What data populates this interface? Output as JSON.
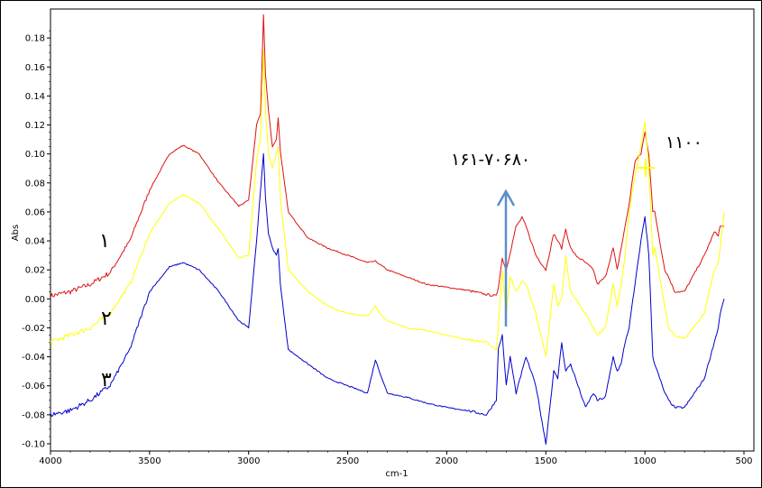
{
  "chart_data": {
    "type": "line",
    "title": "",
    "xlabel": "cm-1",
    "ylabel": "Abs",
    "xlim": [
      4000,
      450
    ],
    "ylim": [
      -0.105,
      0.2
    ],
    "x_reversed": true,
    "grid": false,
    "legend": "none",
    "x_ticks": [
      4000,
      3500,
      3000,
      2500,
      2000,
      1500,
      1000,
      500
    ],
    "y_ticks": [
      -0.1,
      -0.08,
      -0.06,
      -0.04,
      -0.02,
      0.0,
      0.02,
      0.04,
      0.06,
      0.08,
      0.1,
      0.12,
      0.14,
      0.16,
      0.18
    ],
    "series": [
      {
        "color": "#dd1111",
        "x": [
          4000,
          3900,
          3800,
          3700,
          3600,
          3500,
          3400,
          3330,
          3250,
          3150,
          3050,
          3000,
          2960,
          2940,
          2925,
          2915,
          2900,
          2880,
          2860,
          2851,
          2840,
          2800,
          2700,
          2600,
          2500,
          2400,
          2360,
          2340,
          2300,
          2200,
          2100,
          2000,
          1900,
          1800,
          1750,
          1740,
          1720,
          1700,
          1680,
          1650,
          1620,
          1600,
          1550,
          1500,
          1460,
          1440,
          1420,
          1400,
          1375,
          1350,
          1300,
          1260,
          1240,
          1200,
          1160,
          1140,
          1120,
          1100,
          1080,
          1050,
          1020,
          1000,
          980,
          960,
          950,
          900,
          880,
          850,
          800,
          700,
          650,
          630,
          620,
          600
        ],
        "y": [
          0.002,
          0.005,
          0.01,
          0.018,
          0.04,
          0.075,
          0.1,
          0.106,
          0.1,
          0.08,
          0.064,
          0.068,
          0.12,
          0.128,
          0.196,
          0.155,
          0.13,
          0.105,
          0.11,
          0.125,
          0.102,
          0.06,
          0.042,
          0.035,
          0.03,
          0.025,
          0.026,
          0.024,
          0.02,
          0.015,
          0.01,
          0.008,
          0.006,
          0.003,
          0.002,
          0.008,
          0.028,
          0.02,
          0.032,
          0.05,
          0.056,
          0.05,
          0.03,
          0.02,
          0.045,
          0.04,
          0.035,
          0.048,
          0.035,
          0.03,
          0.025,
          0.02,
          0.01,
          0.015,
          0.035,
          0.02,
          0.035,
          0.05,
          0.065,
          0.095,
          0.1,
          0.115,
          0.1,
          0.06,
          0.06,
          0.02,
          0.015,
          0.005,
          0.005,
          0.03,
          0.046,
          0.044,
          0.05,
          0.05
        ]
      },
      {
        "color": "#ffff00",
        "x": [
          4000,
          3900,
          3800,
          3700,
          3600,
          3500,
          3400,
          3330,
          3250,
          3150,
          3050,
          3000,
          2960,
          2940,
          2925,
          2915,
          2900,
          2880,
          2860,
          2851,
          2840,
          2800,
          2700,
          2600,
          2500,
          2400,
          2360,
          2340,
          2300,
          2200,
          2100,
          2000,
          1900,
          1800,
          1750,
          1740,
          1720,
          1700,
          1680,
          1650,
          1620,
          1600,
          1550,
          1500,
          1460,
          1440,
          1420,
          1400,
          1375,
          1350,
          1300,
          1260,
          1240,
          1200,
          1160,
          1140,
          1120,
          1100,
          1080,
          1050,
          1020,
          1000,
          980,
          960,
          950,
          900,
          880,
          850,
          800,
          700,
          650,
          630,
          620,
          600
        ],
        "y": [
          -0.03,
          -0.025,
          -0.02,
          -0.01,
          0.01,
          0.045,
          0.066,
          0.072,
          0.066,
          0.048,
          0.028,
          0.03,
          0.095,
          0.112,
          0.172,
          0.13,
          0.1,
          0.09,
          0.1,
          0.105,
          0.07,
          0.02,
          0.005,
          -0.005,
          -0.01,
          -0.012,
          -0.005,
          -0.01,
          -0.015,
          -0.02,
          -0.022,
          -0.025,
          -0.028,
          -0.03,
          -0.035,
          -0.02,
          0.02,
          -0.01,
          0.015,
          0.005,
          0.012,
          0.01,
          -0.01,
          -0.04,
          0.01,
          -0.005,
          0.0,
          0.03,
          0.005,
          0.0,
          -0.01,
          -0.02,
          -0.025,
          -0.02,
          0.01,
          -0.005,
          0.01,
          0.03,
          0.06,
          0.085,
          0.105,
          0.122,
          0.09,
          0.03,
          0.035,
          -0.005,
          -0.02,
          -0.025,
          -0.028,
          -0.01,
          0.02,
          0.025,
          0.035,
          0.06
        ]
      },
      {
        "color": "#0000cc",
        "x": [
          4000,
          3900,
          3800,
          3700,
          3600,
          3500,
          3400,
          3330,
          3250,
          3150,
          3050,
          3000,
          2960,
          2940,
          2925,
          2915,
          2900,
          2880,
          2860,
          2851,
          2840,
          2800,
          2700,
          2600,
          2500,
          2400,
          2360,
          2340,
          2300,
          2200,
          2100,
          2000,
          1900,
          1800,
          1750,
          1740,
          1720,
          1700,
          1680,
          1650,
          1620,
          1600,
          1550,
          1500,
          1460,
          1440,
          1420,
          1400,
          1375,
          1350,
          1300,
          1260,
          1240,
          1200,
          1160,
          1140,
          1120,
          1100,
          1080,
          1050,
          1020,
          1000,
          980,
          960,
          950,
          900,
          880,
          850,
          800,
          700,
          650,
          630,
          620,
          600
        ],
        "y": [
          -0.08,
          -0.077,
          -0.07,
          -0.06,
          -0.035,
          0.005,
          0.022,
          0.025,
          0.02,
          0.005,
          -0.015,
          -0.02,
          0.04,
          0.075,
          0.1,
          0.07,
          0.045,
          0.035,
          0.03,
          0.035,
          0.01,
          -0.035,
          -0.045,
          -0.055,
          -0.06,
          -0.065,
          -0.042,
          -0.05,
          -0.065,
          -0.068,
          -0.072,
          -0.075,
          -0.077,
          -0.08,
          -0.07,
          -0.035,
          -0.025,
          -0.06,
          -0.04,
          -0.065,
          -0.05,
          -0.04,
          -0.06,
          -0.1,
          -0.05,
          -0.055,
          -0.03,
          -0.05,
          -0.045,
          -0.055,
          -0.075,
          -0.065,
          -0.07,
          -0.068,
          -0.04,
          -0.05,
          -0.045,
          -0.03,
          -0.02,
          0.01,
          0.04,
          0.057,
          0.03,
          -0.04,
          -0.045,
          -0.065,
          -0.07,
          -0.075,
          -0.075,
          -0.055,
          -0.03,
          -0.02,
          -0.01,
          0.0
        ]
      }
    ],
    "annotations": {
      "label_1": "١",
      "label_2": "٢",
      "label_3": "٣",
      "range_label": "١۶٧٠-١۶٨٠",
      "peak_label": "١١٠٠",
      "arrow_color": "#5b8fc9",
      "marker_color": "#ffff00"
    }
  }
}
